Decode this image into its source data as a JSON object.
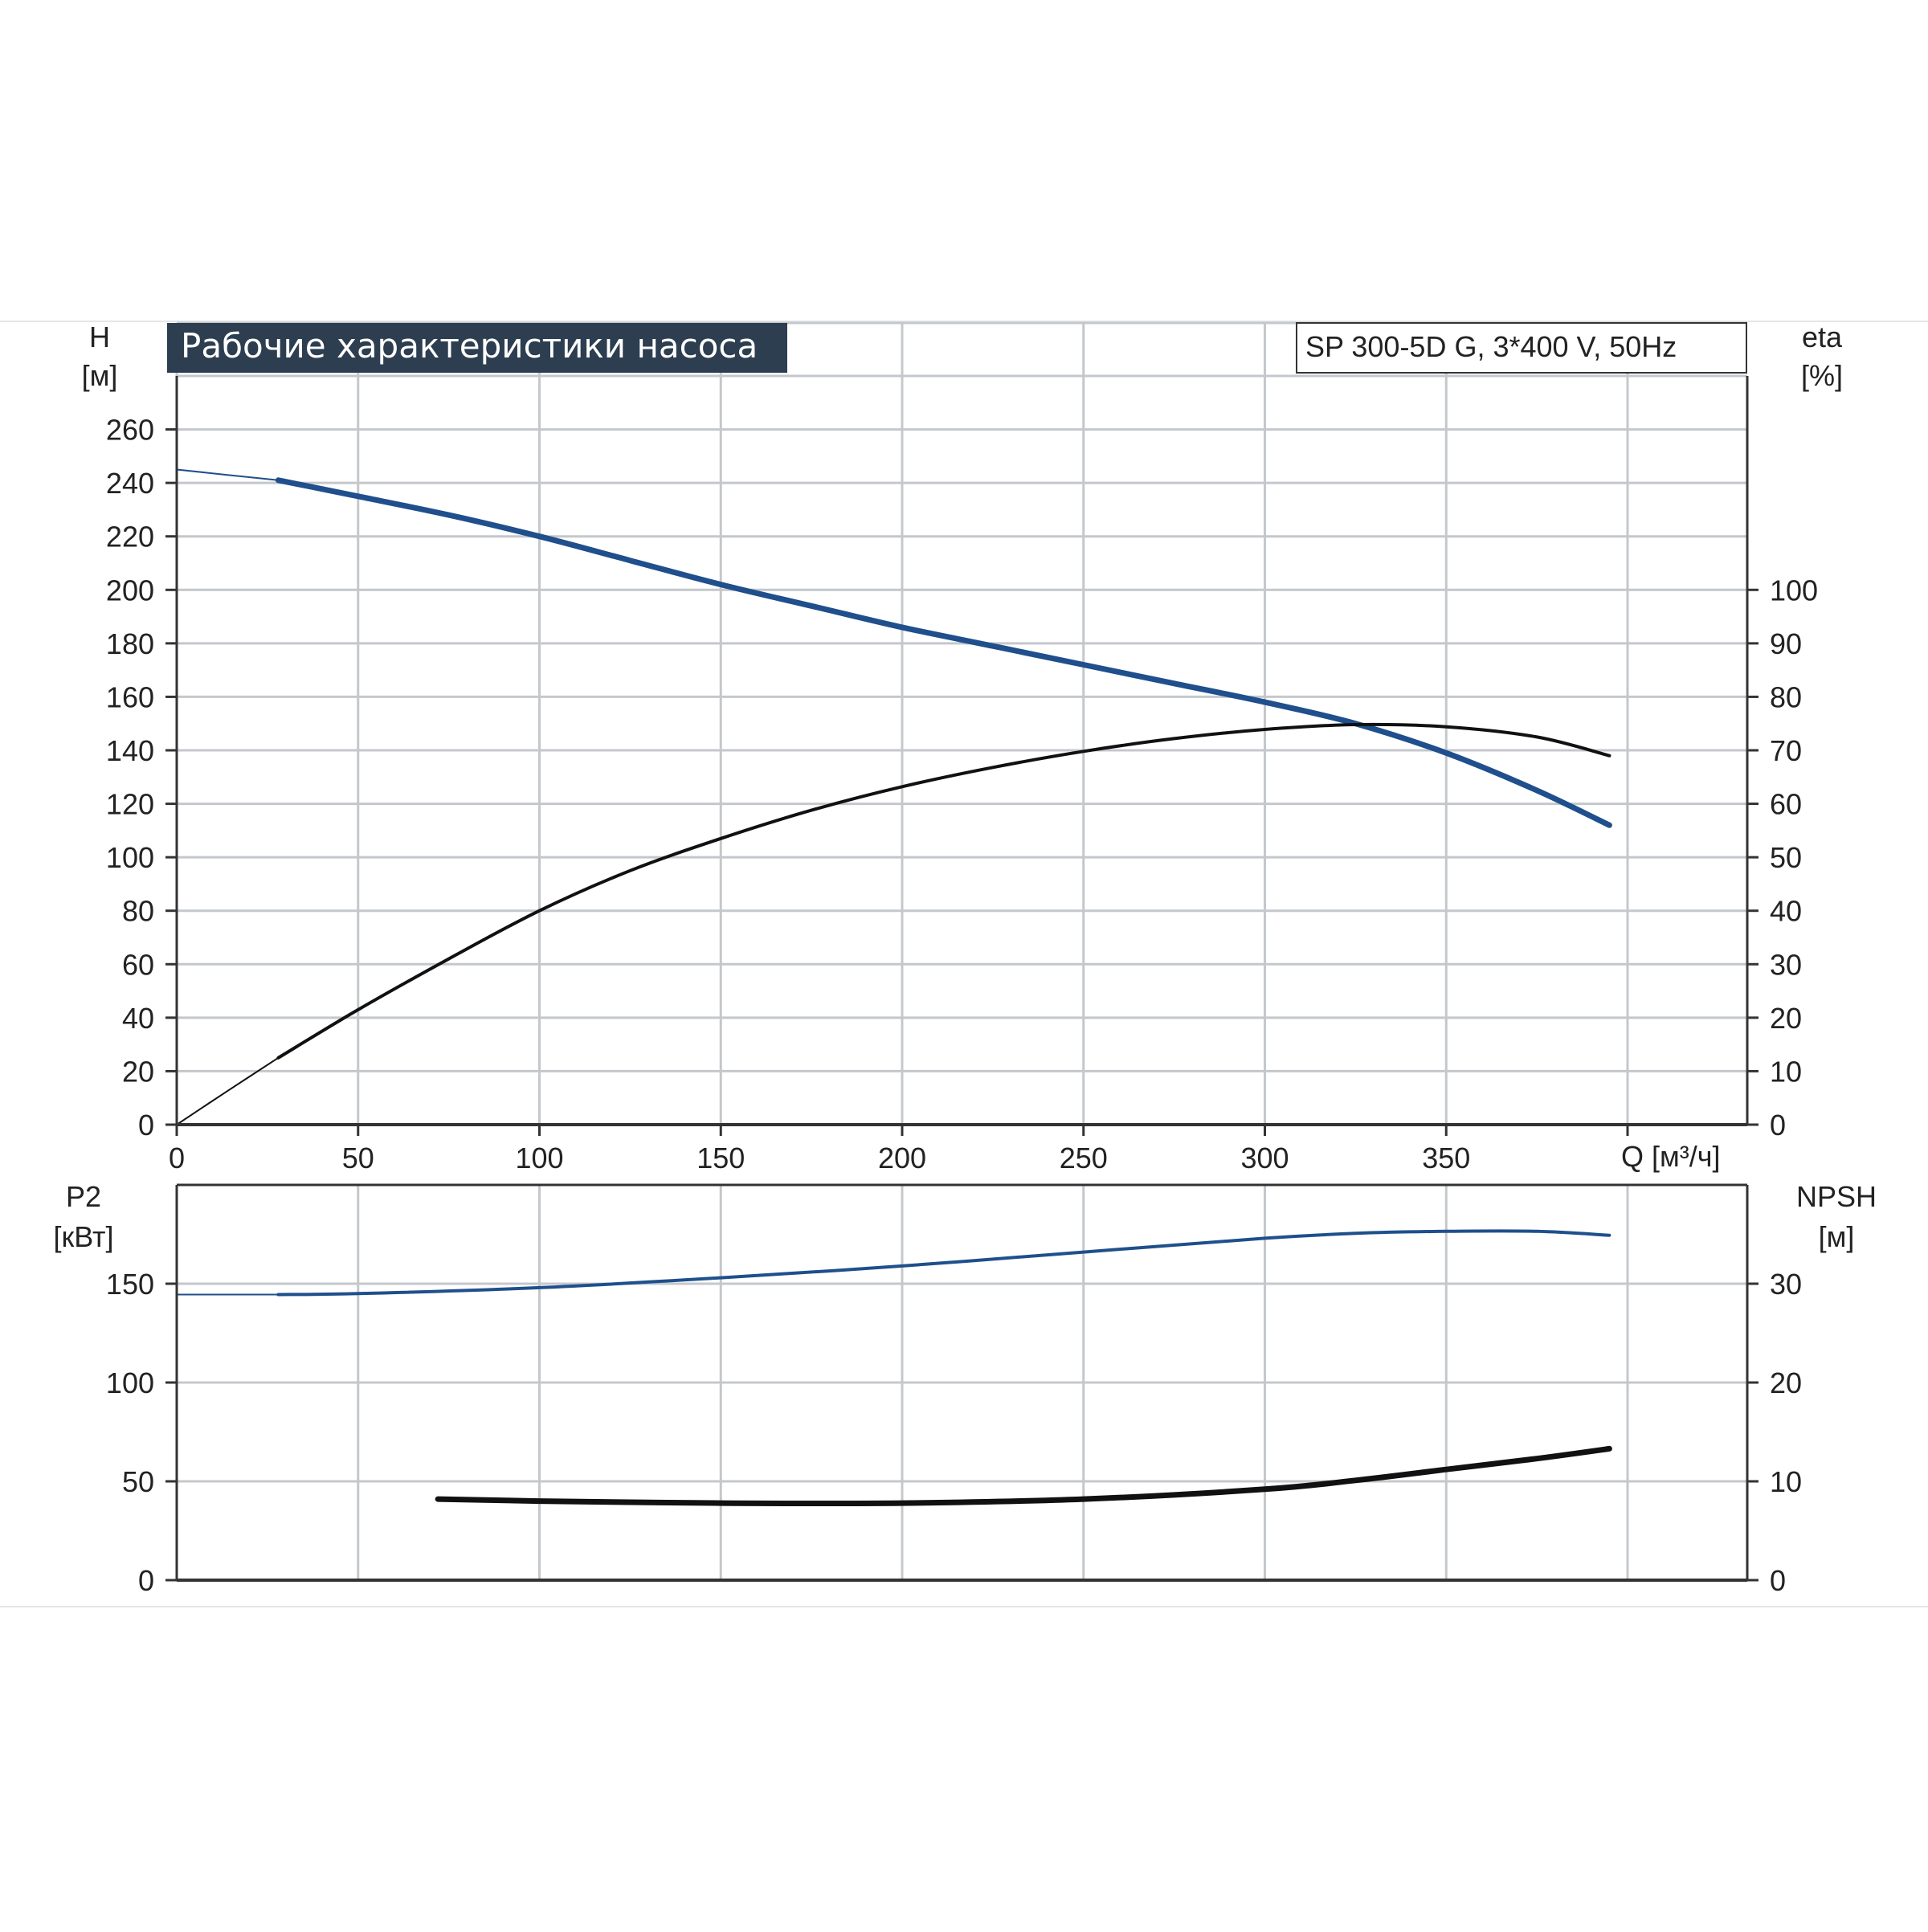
{
  "colors": {
    "background": "#ffffff",
    "grid": "#c4c8cc",
    "axis": "#333333",
    "blue_curve": "#1f4f8c",
    "black_curve": "#111111",
    "title_bg": "#2d3e50",
    "title_text": "#ffffff",
    "separator": "#e6e6e6"
  },
  "header": {
    "title": "Рабочие характеристики насоса",
    "model": "SP 300-5D G, 3*400 V, 50Hz"
  },
  "chart_data": [
    {
      "id": "top",
      "type": "line",
      "x_axis": {
        "label": "Q [м³/ч]",
        "range": [
          0,
          433
        ],
        "ticks": [
          0,
          50,
          100,
          150,
          200,
          250,
          300,
          350
        ],
        "grid": [
          0,
          50,
          100,
          150,
          200,
          250,
          300,
          350,
          400
        ]
      },
      "y_left": {
        "label_name": "H",
        "label_unit": "[м]",
        "range": [
          0,
          280
        ],
        "ticks": [
          0,
          20,
          40,
          60,
          80,
          100,
          120,
          140,
          160,
          180,
          200,
          220,
          240,
          260
        ]
      },
      "y_right": {
        "label_name": "eta",
        "label_unit": "[%]",
        "range": [
          0,
          140
        ],
        "ticks": [
          0,
          10,
          20,
          30,
          40,
          50,
          60,
          70,
          80,
          90,
          100
        ]
      },
      "grid": true,
      "series": [
        {
          "key": "head",
          "axis": "left",
          "color": "#1f4f8c",
          "width": "thick",
          "x": [
            28,
            50,
            75,
            100,
            125,
            150,
            175,
            200,
            225,
            250,
            275,
            300,
            325,
            350,
            375,
            395
          ],
          "y": [
            241,
            235,
            228,
            220,
            211,
            202,
            194,
            186,
            179,
            172,
            165,
            158,
            150,
            139,
            125,
            112
          ]
        },
        {
          "key": "head_extension",
          "axis": "left",
          "color": "#1f4f8c",
          "width": "thin",
          "x": [
            0,
            14,
            28
          ],
          "y": [
            245,
            243,
            241
          ]
        },
        {
          "key": "efficiency",
          "axis": "right",
          "color": "#111111",
          "width": "medium",
          "x": [
            28,
            50,
            75,
            100,
            125,
            150,
            175,
            200,
            225,
            250,
            275,
            300,
            325,
            350,
            375,
            395
          ],
          "y": [
            12.5,
            21.5,
            31,
            40,
            47.5,
            53.5,
            58.8,
            63.2,
            66.8,
            69.8,
            72.2,
            73.9,
            74.8,
            74.4,
            72.5,
            69
          ]
        },
        {
          "key": "efficiency_extension",
          "axis": "right",
          "color": "#111111",
          "width": "thin",
          "x": [
            0,
            14,
            28
          ],
          "y": [
            0,
            6.3,
            12.5
          ]
        }
      ]
    },
    {
      "id": "bottom",
      "type": "line",
      "x_axis": {
        "range": [
          0,
          433
        ],
        "grid": [
          0,
          50,
          100,
          150,
          200,
          250,
          300,
          350,
          400
        ]
      },
      "y_left": {
        "label_name": "P2",
        "label_unit": "[кВт]",
        "range": [
          0,
          200
        ],
        "ticks": [
          0,
          50,
          100,
          150
        ]
      },
      "y_right": {
        "label_name": "NPSH",
        "label_unit": "[м]",
        "range": [
          0,
          40
        ],
        "ticks": [
          0,
          10,
          20,
          30
        ]
      },
      "grid": true,
      "series": [
        {
          "key": "power",
          "axis": "left",
          "color": "#1f4f8c",
          "width": "medium",
          "x": [
            28,
            50,
            100,
            150,
            200,
            250,
            300,
            325,
            350,
            375,
            395
          ],
          "y": [
            144.5,
            145,
            148,
            153,
            159,
            166,
            173,
            175.5,
            176.5,
            176.5,
            174.5
          ]
        },
        {
          "key": "power_extension",
          "axis": "left",
          "color": "#1f4f8c",
          "width": "thin",
          "x": [
            0,
            28
          ],
          "y": [
            144.5,
            144.5
          ]
        },
        {
          "key": "npsh",
          "axis": "right",
          "color": "#111111",
          "width": "thick",
          "x": [
            72,
            100,
            150,
            200,
            250,
            300,
            325,
            350,
            375,
            395
          ],
          "y": [
            8.2,
            8.0,
            7.8,
            7.8,
            8.2,
            9.2,
            10.1,
            11.2,
            12.3,
            13.3
          ]
        }
      ]
    }
  ]
}
